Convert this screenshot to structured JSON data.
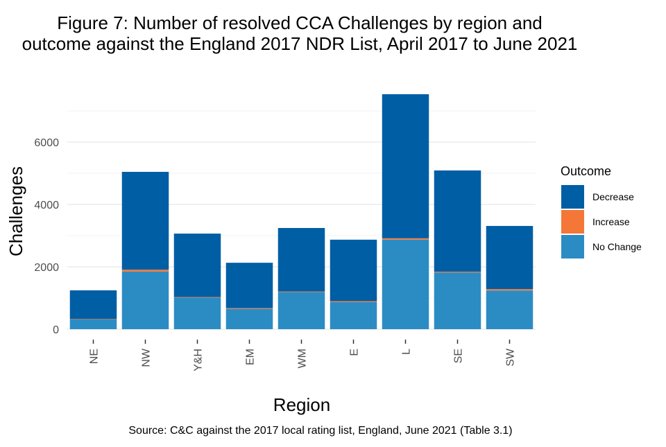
{
  "chart_data": {
    "type": "bar",
    "stacked": true,
    "title_lines": [
      "Figure 7: Number of resolved CCA Challenges by region and",
      "outcome against the England 2017 NDR List, April 2017 to June 2021"
    ],
    "xlabel": "Region",
    "ylabel": "Challenges",
    "caption": "Source: C&C against the 2017 local rating list, England, June 2021 (Table 3.1)",
    "categories": [
      "NE",
      "NW",
      "Y&H",
      "EM",
      "WM",
      "E",
      "L",
      "SE",
      "SW"
    ],
    "series": [
      {
        "name": "No Change",
        "color": "#2b8cc4",
        "values": [
          311,
          1850,
          1010,
          650,
          1190,
          870,
          2870,
          1820,
          1240
        ]
      },
      {
        "name": "Increase",
        "color": "#f47738",
        "values": [
          15,
          60,
          20,
          25,
          20,
          30,
          45,
          25,
          45
        ]
      },
      {
        "name": "Decrease",
        "color": "#005ea5",
        "values": [
          920,
          3135,
          2035,
          1455,
          2035,
          1970,
          4620,
          3245,
          2025
        ]
      }
    ],
    "legend": {
      "title": "Outcome",
      "entries": [
        "Decrease",
        "Increase",
        "No Change"
      ],
      "placement": "right"
    },
    "yticks": [
      0,
      2000,
      4000,
      6000
    ],
    "ylim": [
      0,
      7600
    ],
    "grid": true
  }
}
